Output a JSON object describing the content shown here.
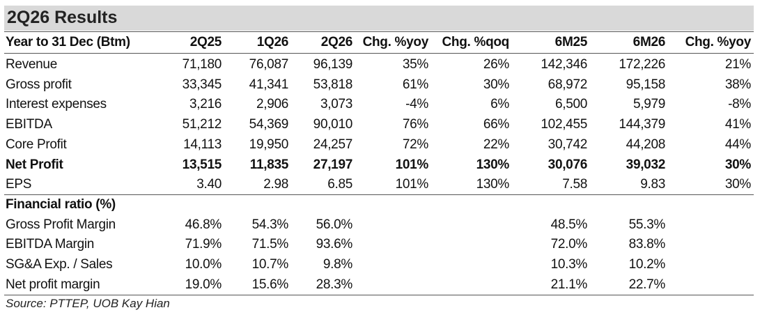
{
  "title": "2Q26 Results",
  "table": {
    "columns": [
      "Year to 31 Dec (Btm)",
      "2Q25",
      "1Q26",
      "2Q26",
      "Chg. %yoy",
      "Chg. %qoq",
      "6M25",
      "6M26",
      "Chg. %yoy"
    ],
    "rows": [
      [
        "Revenue",
        "71,180",
        "76,087",
        "96,139",
        "35%",
        "26%",
        "142,346",
        "172,226",
        "21%"
      ],
      [
        "Gross profit",
        "33,345",
        "41,341",
        "53,818",
        "61%",
        "30%",
        "68,972",
        "95,158",
        "38%"
      ],
      [
        "Interest expenses",
        "3,216",
        "2,906",
        "3,073",
        "-4%",
        "6%",
        "6,500",
        "5,979",
        "-8%"
      ],
      [
        "EBITDA",
        "51,212",
        "54,369",
        "90,010",
        "76%",
        "66%",
        "102,455",
        "144,379",
        "41%"
      ],
      [
        "Core Profit",
        "14,113",
        "19,950",
        "24,257",
        "72%",
        "22%",
        "30,742",
        "44,208",
        "44%"
      ],
      [
        "Net Profit",
        "13,515",
        "11,835",
        "27,197",
        "101%",
        "130%",
        "30,076",
        "39,032",
        "30%"
      ],
      [
        "EPS",
        "3.40",
        "2.98",
        "6.85",
        "101%",
        "130%",
        "7.58",
        "9.83",
        "30%"
      ],
      [
        "Financial ratio (%)"
      ],
      [
        "Gross Profit Margin",
        "46.8%",
        "54.3%",
        "56.0%",
        null,
        null,
        "48.5%",
        "55.3%",
        null
      ],
      [
        "EBITDA Margin",
        "71.9%",
        "71.5%",
        "93.6%",
        null,
        null,
        "72.0%",
        "83.8%",
        null
      ],
      [
        "SG&A Exp. / Sales",
        "10.0%",
        "10.7%",
        "9.8%",
        null,
        null,
        "10.3%",
        "10.2%",
        null
      ],
      [
        "Net profit margin",
        "19.0%",
        "15.6%",
        "28.3%",
        null,
        null,
        "21.1%",
        "22.7%",
        null
      ]
    ]
  },
  "source": "Source: PTTEP, UOB Kay Hian"
}
